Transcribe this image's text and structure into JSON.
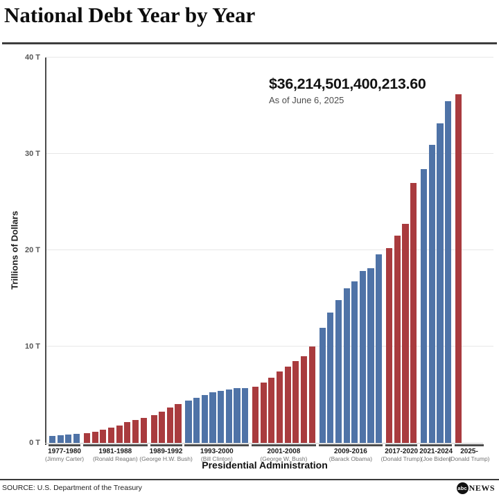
{
  "header": {
    "title": "National Debt Year by Year"
  },
  "annotation": {
    "amount": "$36,214,501,400,213.60",
    "as_of": "As of June 6, 2025"
  },
  "chart_data": {
    "type": "bar",
    "title": "National Debt Year by Year",
    "ylabel": "Trillions of Dollars",
    "xlabel": "Presidential Administration",
    "ylim": [
      0,
      40
    ],
    "grid": true,
    "ytick_values": [
      0,
      10,
      20,
      30,
      40
    ],
    "ytick_labels": [
      "0 T",
      "10 T",
      "20 T",
      "30 T",
      "40 T"
    ],
    "colors": {
      "democrat": "#4f73a7",
      "republican": "#a93b3e"
    },
    "groups": [
      {
        "years": "1977-1980",
        "president": "(Jimmy Carter)",
        "party": "democrat",
        "bar_years": [
          1977,
          1978,
          1979,
          1980
        ],
        "values": [
          0.7,
          0.77,
          0.83,
          0.91
        ]
      },
      {
        "years": "1981-1988",
        "president": "(Ronald Reagan)",
        "party": "republican",
        "bar_years": [
          1981,
          1982,
          1983,
          1984,
          1985,
          1986,
          1987,
          1988
        ],
        "values": [
          1.0,
          1.14,
          1.38,
          1.57,
          1.82,
          2.13,
          2.35,
          2.6
        ]
      },
      {
        "years": "1989-1992",
        "president": "(George H.W. Bush)",
        "party": "republican",
        "bar_years": [
          1989,
          1990,
          1991,
          1992
        ],
        "values": [
          2.86,
          3.23,
          3.67,
          4.06
        ]
      },
      {
        "years": "1993-2000",
        "president": "(Bill Clinton)",
        "party": "democrat",
        "bar_years": [
          1993,
          1994,
          1995,
          1996,
          1997,
          1998,
          1999,
          2000
        ],
        "values": [
          4.41,
          4.69,
          4.97,
          5.22,
          5.41,
          5.53,
          5.66,
          5.67
        ]
      },
      {
        "years": "2001-2008",
        "president": "(George W. Bush)",
        "party": "republican",
        "bar_years": [
          2001,
          2002,
          2003,
          2004,
          2005,
          2006,
          2007,
          2008
        ],
        "values": [
          5.81,
          6.23,
          6.78,
          7.38,
          7.93,
          8.51,
          9.01,
          10.02
        ]
      },
      {
        "years": "2009-2016",
        "president": "(Barack Obama)",
        "party": "democrat",
        "bar_years": [
          2009,
          2010,
          2011,
          2012,
          2013,
          2014,
          2015,
          2016
        ],
        "values": [
          11.91,
          13.56,
          14.79,
          16.07,
          16.74,
          17.82,
          18.15,
          19.57
        ]
      },
      {
        "years": "2017-2020",
        "president": "(Donald Trump)",
        "party": "republican",
        "bar_years": [
          2017,
          2018,
          2019,
          2020
        ],
        "values": [
          20.24,
          21.52,
          22.72,
          26.95
        ]
      },
      {
        "years": "2021-2024",
        "president": "(Joe Biden)",
        "party": "democrat",
        "bar_years": [
          2021,
          2022,
          2023,
          2024
        ],
        "values": [
          28.43,
          30.93,
          33.17,
          35.46
        ]
      },
      {
        "years": "2025-",
        "president": "(Donald Trump)",
        "party": "republican",
        "bar_years": [
          2025
        ],
        "values": [
          36.21
        ]
      }
    ],
    "annotation": {
      "amount": "$36,214,501,400,213.60",
      "as_of": "As of June 6, 2025"
    }
  },
  "footer": {
    "source": "SOURCE: U.S. Department of the Treasury",
    "logo_circle": "abc",
    "logo_text": "NEWS"
  }
}
